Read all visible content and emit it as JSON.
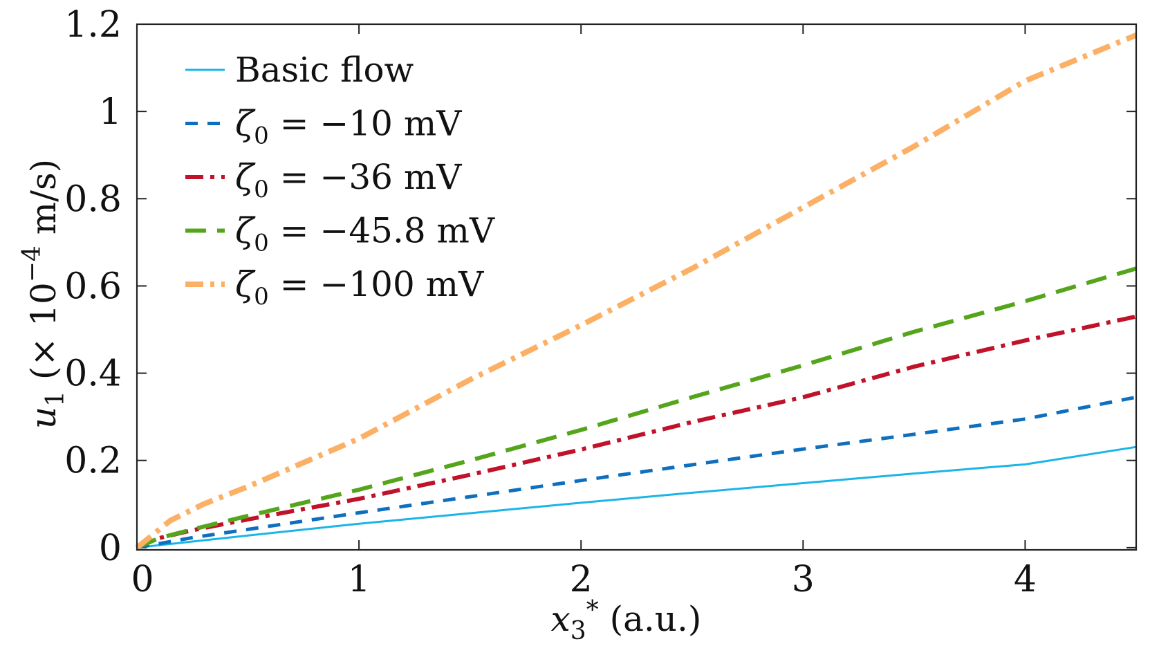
{
  "chart_data": {
    "type": "line",
    "title": "",
    "xlabel": {
      "var": "x",
      "sub": "3",
      "sup": "*",
      "unit": " (a.u.)"
    },
    "ylabel": {
      "var": "u",
      "sub": "1",
      "mid": " (× 10",
      "sup": "−4",
      "unit": " m/s)"
    },
    "xlim": [
      0,
      4.5
    ],
    "ylim": [
      -0.005,
      1.2
    ],
    "xticks": [
      0,
      1,
      2,
      3,
      4
    ],
    "xtick_labels": [
      "0",
      "1",
      "2",
      "3",
      "4"
    ],
    "yticks": [
      0,
      0.2,
      0.4,
      0.6,
      0.8,
      1.0,
      1.2
    ],
    "ytick_labels": [
      "0",
      "0.2",
      "0.4",
      "0.6",
      "0.8",
      "1",
      "1.2"
    ],
    "legend_position": "top-left",
    "series": [
      {
        "name": "Basic flow",
        "legend": {
          "text": "Basic flow"
        },
        "color": "#1AB5E8",
        "style": "solid",
        "x": [
          0,
          0.5,
          1,
          1.5,
          2,
          2.5,
          3,
          3.5,
          4,
          4.5
        ],
        "y": [
          0,
          0.028,
          0.055,
          0.079,
          0.103,
          0.126,
          0.148,
          0.17,
          0.191,
          0.231
        ]
      },
      {
        "name": "ζ0 = −10 mV",
        "legend": {
          "sym": "ζ",
          "sub": "0",
          "rest": " = −10 mV"
        },
        "color": "#0E6FBF",
        "style": "dashed",
        "x": [
          0,
          0.25,
          0.5,
          1,
          1.5,
          2,
          2.5,
          3,
          3.5,
          4,
          4.5
        ],
        "y": [
          0,
          0.023,
          0.042,
          0.08,
          0.117,
          0.154,
          0.19,
          0.226,
          0.26,
          0.295,
          0.345
        ]
      },
      {
        "name": "ζ0 = −36 mV",
        "legend": {
          "sym": "ζ",
          "sub": "0",
          "rest": " = −36 mV"
        },
        "color": "#C0122A",
        "style": "dashdot",
        "x": [
          0,
          0.1,
          0.25,
          0.5,
          1,
          1.5,
          2,
          2.5,
          3,
          3.5,
          4,
          4.5
        ],
        "y": [
          0,
          0.022,
          0.04,
          0.065,
          0.112,
          0.167,
          0.225,
          0.288,
          0.345,
          0.415,
          0.475,
          0.53
        ]
      },
      {
        "name": "ζ0 = −45.8 mV",
        "legend": {
          "sym": "ζ",
          "sub": "0",
          "rest": " = −45.8 mV"
        },
        "color": "#55A51C",
        "style": "longdash",
        "x": [
          0,
          0.1,
          0.25,
          0.5,
          1,
          1.5,
          2,
          2.5,
          3,
          3.5,
          4,
          4.5
        ],
        "y": [
          0,
          0.022,
          0.042,
          0.073,
          0.133,
          0.2,
          0.27,
          0.345,
          0.418,
          0.495,
          0.565,
          0.64
        ]
      },
      {
        "name": "ζ0 = −100 mV",
        "legend": {
          "sym": "ζ",
          "sub": "0",
          "rest": " = −100 mV"
        },
        "color": "#FBB066",
        "style": "dashdot",
        "x": [
          0,
          0.15,
          0.3,
          0.5,
          1,
          1.5,
          2,
          2.5,
          3,
          3.5,
          4,
          4.5
        ],
        "y": [
          0,
          0.062,
          0.1,
          0.14,
          0.25,
          0.385,
          0.51,
          0.64,
          0.78,
          0.92,
          1.07,
          1.175
        ]
      }
    ]
  }
}
